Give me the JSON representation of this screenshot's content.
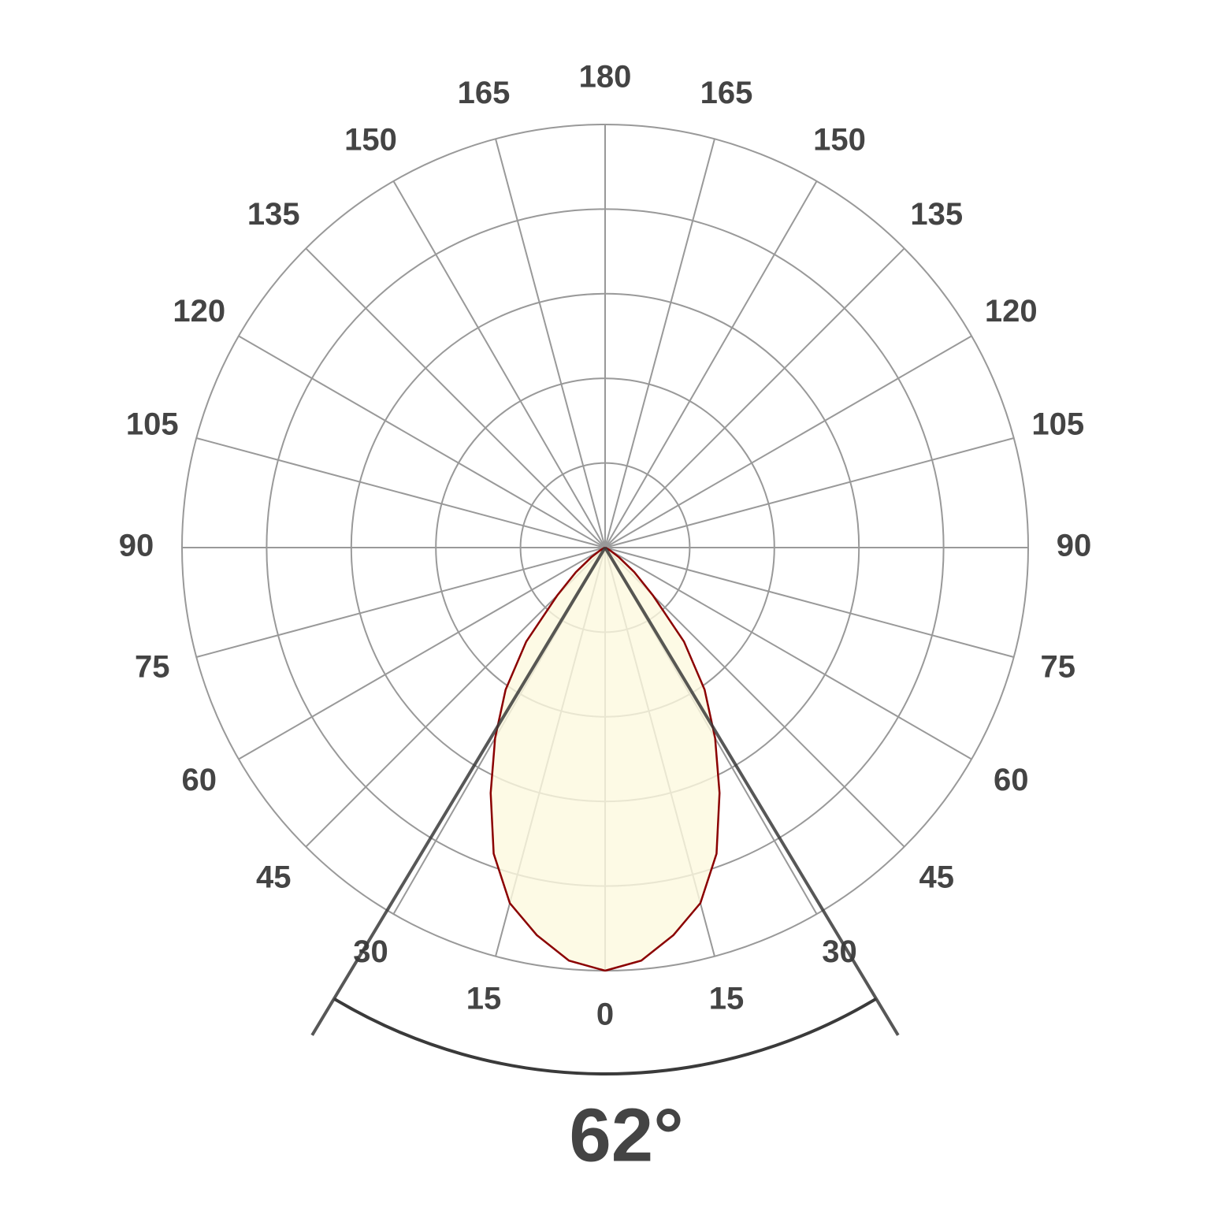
{
  "chart_data": {
    "type": "polar",
    "angle_ticks": [
      0,
      15,
      30,
      45,
      60,
      75,
      90,
      105,
      120,
      135,
      150,
      165,
      180
    ],
    "rlim": [
      0,
      1
    ],
    "rticks": [
      0.2,
      0.4,
      0.6,
      0.8,
      1.0
    ],
    "x": [
      0,
      5,
      10,
      15,
      20,
      25,
      30,
      35,
      40,
      45,
      50,
      55,
      60,
      65,
      70,
      75,
      80,
      85,
      90
    ],
    "values": [
      1.0,
      0.98,
      0.93,
      0.87,
      0.77,
      0.64,
      0.52,
      0.41,
      0.29,
      0.16,
      0.09,
      0.04,
      0.015,
      0.005,
      0,
      0,
      0,
      0,
      0
    ],
    "color": "#8b0000",
    "fill": "#fcf9df",
    "beam_angle": 62,
    "beam_angle_label": "62°",
    "grid": true
  }
}
